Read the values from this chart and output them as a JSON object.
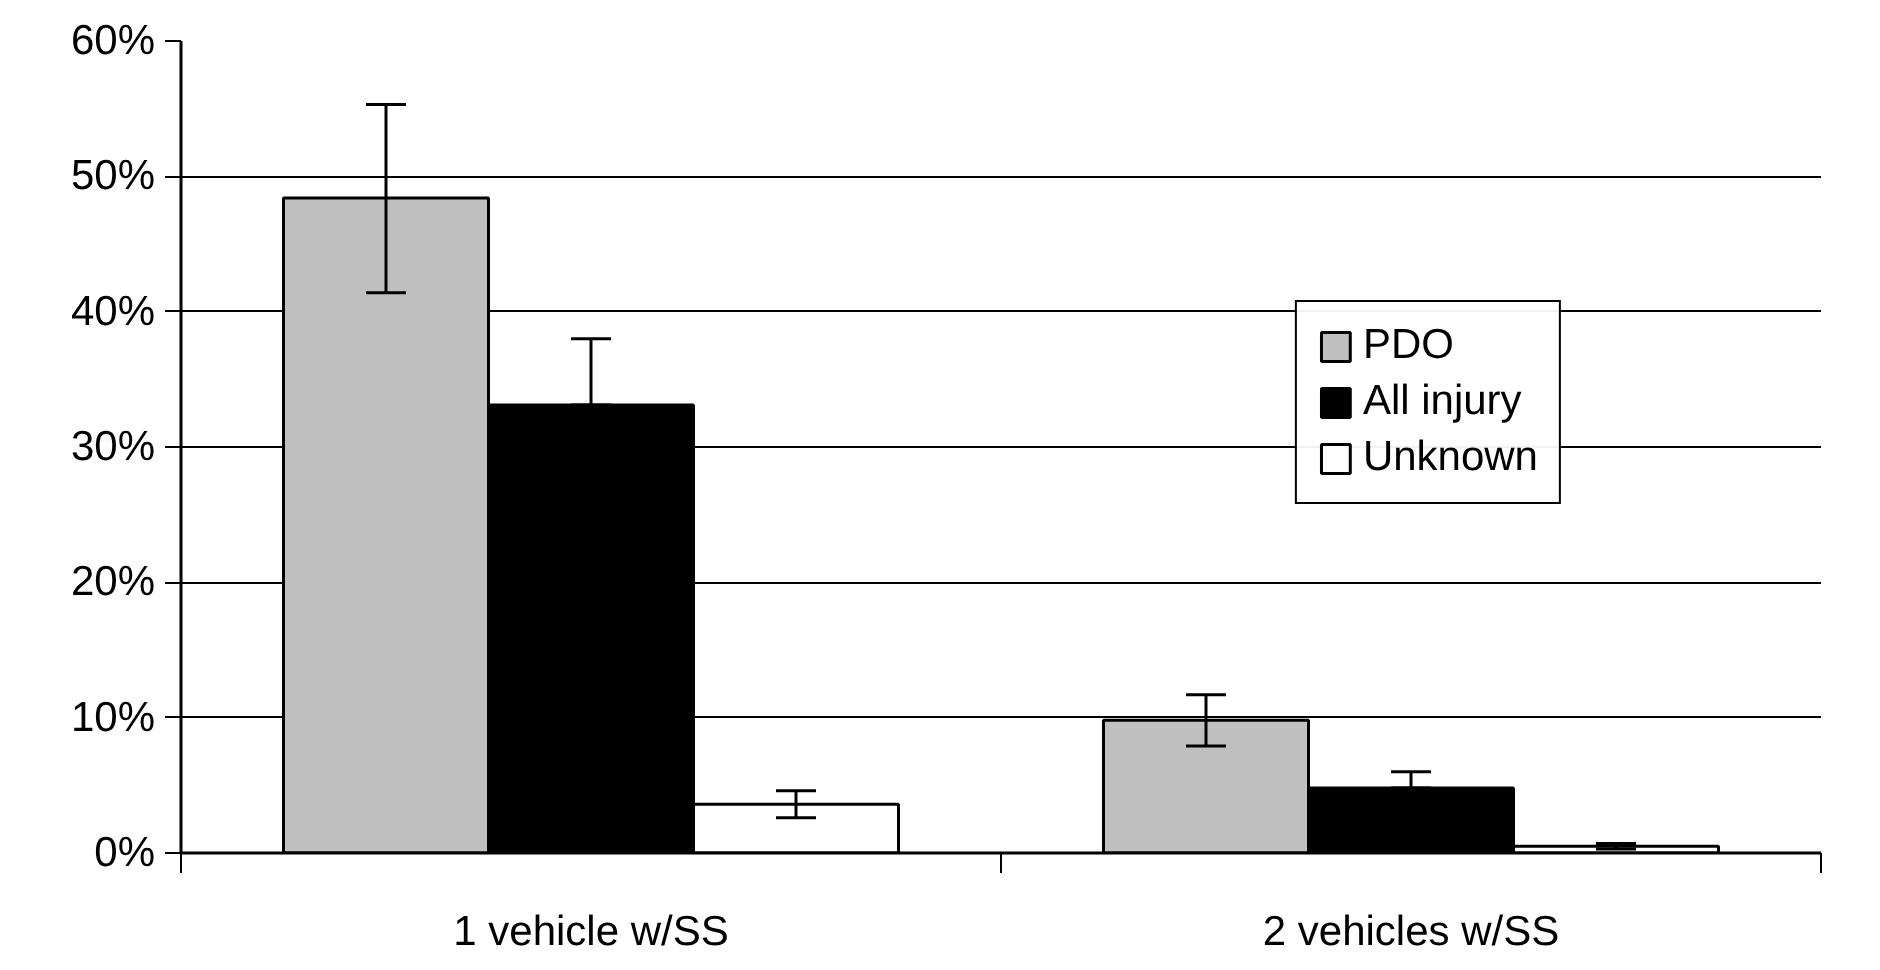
{
  "chart_data": {
    "type": "bar",
    "categories": [
      "1 vehicle w/SS",
      "2 vehicles w/SS"
    ],
    "series": [
      {
        "name": "PDO",
        "color": "#c0c0c0",
        "values": [
          48.4,
          9.8
        ],
        "errors": [
          [
            41.4,
            55.3
          ],
          [
            7.9,
            11.7
          ]
        ]
      },
      {
        "name": "All injury",
        "color": "#000000",
        "values": [
          33.1,
          4.8
        ],
        "errors": [
          [
            33.1,
            38.0
          ],
          [
            4.8,
            6.0
          ]
        ]
      },
      {
        "name": "Unknown",
        "color": "#ffffff",
        "values": [
          3.6,
          0.5
        ],
        "errors": [
          [
            2.6,
            4.6
          ],
          [
            0.3,
            0.7
          ]
        ]
      }
    ],
    "ylim": [
      0,
      60
    ],
    "yticks": [
      {
        "value": 0,
        "label": "0%"
      },
      {
        "value": 10,
        "label": "10%"
      },
      {
        "value": 20,
        "label": "20%"
      },
      {
        "value": 30,
        "label": "30%"
      },
      {
        "value": 40,
        "label": "40%"
      },
      {
        "value": 50,
        "label": "50%"
      },
      {
        "value": 60,
        "label": "60%"
      }
    ],
    "grid": "y",
    "legend": "top right"
  }
}
